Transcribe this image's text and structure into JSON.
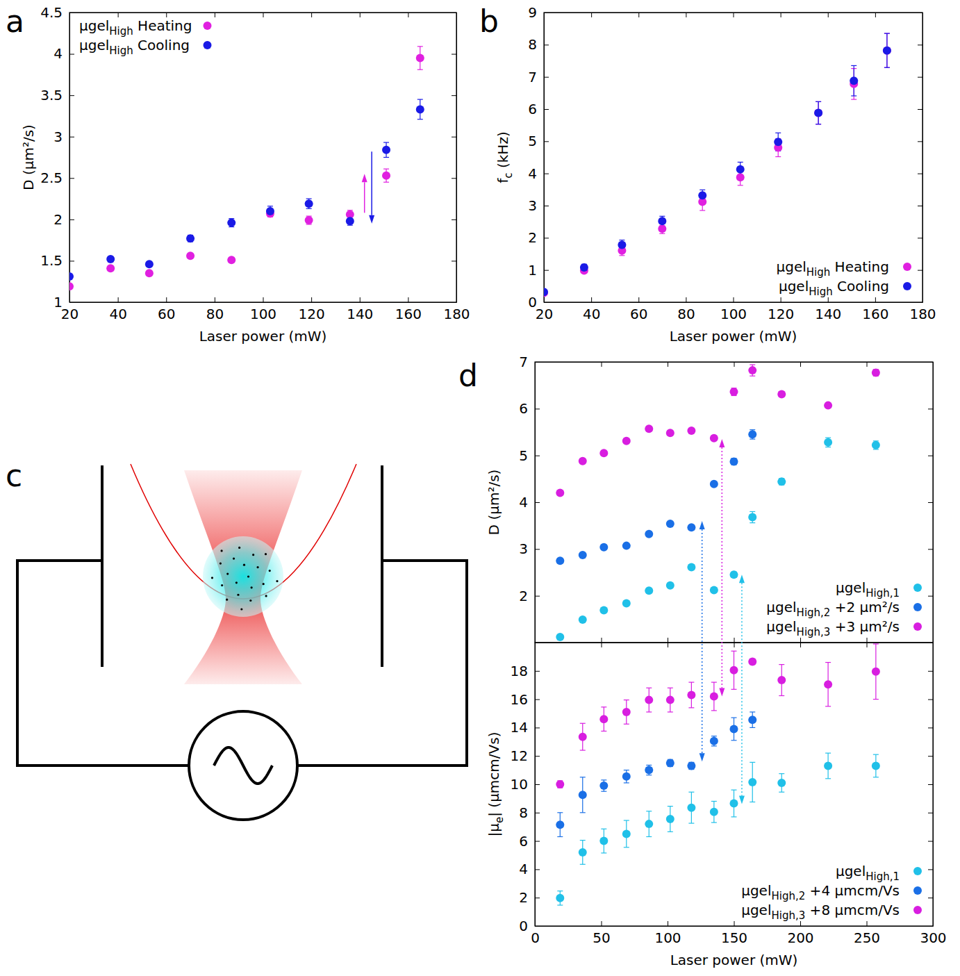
{
  "chart_data": [
    {
      "type": "scatter",
      "panel_label": "a",
      "x_label": "Laser power (mW)",
      "y_label": "D (μm²/s)",
      "xlim": [
        20,
        180
      ],
      "xticks": [
        20,
        40,
        60,
        80,
        100,
        120,
        140,
        160,
        180
      ],
      "ylim": [
        1,
        4.5
      ],
      "yticks": [
        1,
        1.5,
        2,
        2.5,
        3,
        3.5,
        4,
        4.5
      ],
      "legend": "top-left",
      "marker": "circle",
      "series": [
        {
          "name": "μgelHigh Heating",
          "name_sub": "High",
          "color": "#e020e0",
          "x": [
            20,
            37,
            53,
            70,
            87,
            103,
            119,
            136,
            151,
            165
          ],
          "values": [
            1.19,
            1.41,
            1.35,
            1.56,
            1.51,
            2.07,
            1.99,
            2.06,
            2.53,
            3.95
          ],
          "errors": [
            0.03,
            0.03,
            0.03,
            0.03,
            0.03,
            0.04,
            0.05,
            0.05,
            0.08,
            0.14
          ]
        },
        {
          "name": "μgelHigh Cooling",
          "name_sub": "High",
          "color": "#1a1ae6",
          "x": [
            20,
            37,
            53,
            70,
            87,
            103,
            119,
            136,
            151,
            165
          ],
          "values": [
            1.31,
            1.52,
            1.46,
            1.77,
            1.96,
            2.1,
            2.19,
            1.98,
            2.84,
            3.33
          ],
          "errors": [
            0.03,
            0.03,
            0.03,
            0.04,
            0.05,
            0.06,
            0.06,
            0.05,
            0.09,
            0.12
          ]
        }
      ],
      "arrows": [
        {
          "x": 142,
          "y_from": 2.08,
          "y_to": 2.55,
          "color": "#e020e0"
        },
        {
          "x": 145,
          "y_from": 2.82,
          "y_to": 1.95,
          "color": "#1a1ae6"
        }
      ]
    },
    {
      "type": "scatter",
      "panel_label": "b",
      "x_label": "Laser power (mW)",
      "y_label": "fc (kHz)",
      "y_label_sub": "c",
      "xlim": [
        20,
        180
      ],
      "xticks": [
        20,
        40,
        60,
        80,
        100,
        120,
        140,
        160,
        180
      ],
      "ylim": [
        0,
        9
      ],
      "yticks": [
        0,
        1,
        2,
        3,
        4,
        5,
        6,
        7,
        8,
        9
      ],
      "legend": "bottom-right",
      "marker": "circle",
      "series": [
        {
          "name": "μgelHigh Heating",
          "name_sub": "High",
          "color": "#e020e0",
          "x": [
            20,
            37,
            53,
            70,
            87,
            103,
            119,
            136,
            151,
            165
          ],
          "values": [
            0.29,
            0.98,
            1.6,
            2.28,
            3.12,
            3.88,
            4.8,
            5.88,
            6.78,
            7.82
          ],
          "errors": [
            0.05,
            0.08,
            0.15,
            0.15,
            0.27,
            0.25,
            0.28,
            0.35,
            0.48,
            0.53
          ]
        },
        {
          "name": "μgelHigh Cooling",
          "name_sub": "High",
          "color": "#1a1ae6",
          "x": [
            20,
            37,
            53,
            70,
            87,
            103,
            119,
            136,
            151,
            165
          ],
          "values": [
            0.32,
            1.08,
            1.78,
            2.52,
            3.32,
            4.13,
            4.98,
            5.88,
            6.88,
            7.82
          ],
          "errors": [
            0.06,
            0.1,
            0.15,
            0.15,
            0.17,
            0.22,
            0.28,
            0.35,
            0.47,
            0.53
          ]
        }
      ]
    },
    {
      "type": "scatter",
      "panel_label": "d",
      "x_label": "Laser power (mW)",
      "xlim": [
        0,
        300
      ],
      "xticks": [
        0,
        50,
        100,
        150,
        200,
        250,
        300
      ],
      "marker": "circle",
      "subplots": [
        {
          "y_label": "D (μm²/s)",
          "ylim": [
            1,
            7
          ],
          "yticks": [
            2,
            3,
            4,
            5,
            6,
            7
          ],
          "tick_labels": "y",
          "legend": "bottom-right",
          "series": [
            {
              "name": "μgelHigh,1",
              "name_sub": "High,1",
              "color": "#20c0e8",
              "x": [
                19,
                36,
                52,
                69,
                86,
                102,
                118,
                135,
                150,
                164,
                186,
                221,
                257
              ],
              "values": [
                1.12,
                1.49,
                1.69,
                1.84,
                2.11,
                2.22,
                2.61,
                2.12,
                2.45,
                3.68,
                4.44,
                5.28,
                5.22
              ],
              "errors": [
                0.02,
                0.03,
                0.03,
                0.03,
                0.03,
                0.04,
                0.05,
                0.03,
                0.06,
                0.12,
                0.07,
                0.1,
                0.09
              ]
            },
            {
              "name": "μgelHigh,2 +2 μm²/s",
              "name_sub": "High,2",
              "color": "#1a6fe6",
              "x": [
                19,
                36,
                52,
                69,
                86,
                102,
                118,
                135,
                150,
                164
              ],
              "values": [
                2.75,
                2.87,
                3.04,
                3.07,
                3.32,
                3.54,
                3.46,
                4.39,
                4.87,
                5.45
              ],
              "errors": [
                0.02,
                0.03,
                0.03,
                0.03,
                0.03,
                0.03,
                0.03,
                0.03,
                0.07,
                0.1
              ]
            },
            {
              "name": "μgelHigh,3 +3 μm²/s",
              "name_sub": "High,3",
              "color": "#d81ee0",
              "x": [
                19,
                36,
                52,
                69,
                86,
                102,
                118,
                135,
                150,
                164,
                186,
                221,
                257
              ],
              "values": [
                4.2,
                4.88,
                5.05,
                5.31,
                5.57,
                5.48,
                5.53,
                5.37,
                6.36,
                6.82,
                6.31,
                6.07,
                6.77
              ],
              "errors": [
                0.03,
                0.03,
                0.03,
                0.04,
                0.04,
                0.05,
                0.05,
                0.05,
                0.08,
                0.12,
                0.05,
                0.05,
                0.07
              ]
            }
          ]
        },
        {
          "y_label": "|μe| (μmcm/Vs)",
          "y_label_sub": "e",
          "ylim": [
            0,
            20
          ],
          "yticks": [
            0,
            2,
            4,
            6,
            8,
            10,
            12,
            14,
            16,
            18
          ],
          "legend": "bottom-right",
          "series": [
            {
              "name": "μgelHigh,1",
              "name_sub": "High,1",
              "color": "#20c0e8",
              "x": [
                19,
                36,
                52,
                69,
                86,
                102,
                118,
                135,
                150,
                164,
                186,
                221,
                257
              ],
              "values": [
                1.97,
                5.2,
                6.0,
                6.5,
                7.2,
                7.55,
                8.35,
                8.05,
                8.65,
                10.15,
                10.1,
                11.3,
                11.3
              ],
              "errors": [
                0.5,
                0.85,
                0.85,
                0.95,
                0.9,
                0.9,
                1.1,
                0.75,
                0.95,
                1.4,
                0.65,
                0.9,
                0.8
              ]
            },
            {
              "name": "μgelHigh,2 +4 μmcm/Vs",
              "name_sub": "High,2",
              "color": "#1a6fe6",
              "x": [
                19,
                36,
                52,
                69,
                86,
                102,
                118,
                135,
                150,
                164
              ],
              "values": [
                7.15,
                9.25,
                9.9,
                10.55,
                11.0,
                11.5,
                11.3,
                13.05,
                13.9,
                14.55
              ],
              "errors": [
                0.85,
                1.25,
                0.4,
                0.45,
                0.35,
                0.25,
                0.25,
                0.35,
                0.8,
                0.55
              ]
            },
            {
              "name": "μgelHigh,3 +8 μmcm/Vs",
              "name_sub": "High,3",
              "color": "#d81ee0",
              "x": [
                19,
                36,
                52,
                69,
                86,
                102,
                118,
                135,
                150,
                164,
                186,
                221,
                257
              ],
              "values": [
                10.0,
                13.35,
                14.6,
                15.1,
                15.95,
                15.95,
                16.3,
                16.2,
                18.05,
                18.65,
                17.35,
                17.05,
                17.95
              ],
              "errors": [
                0.25,
                0.95,
                0.85,
                0.85,
                0.85,
                0.85,
                0.9,
                1.0,
                1.35,
                0.2,
                1.1,
                1.55,
                1.95
              ]
            }
          ]
        }
      ],
      "arrows": [
        {
          "x": 126,
          "y_from": 3.6,
          "y_to": 11.6,
          "color": "#1a6fe6",
          "line_style": "dotted"
        },
        {
          "x": 141,
          "y_from": 5.35,
          "y_to": 16.2,
          "color": "#d81ee0",
          "line_style": "dotted"
        },
        {
          "x": 156,
          "y_from": 2.45,
          "y_to": 8.6,
          "color": "#20c0e8",
          "line_style": "dotted"
        }
      ]
    }
  ],
  "diagram": {
    "panel_label": "c"
  }
}
